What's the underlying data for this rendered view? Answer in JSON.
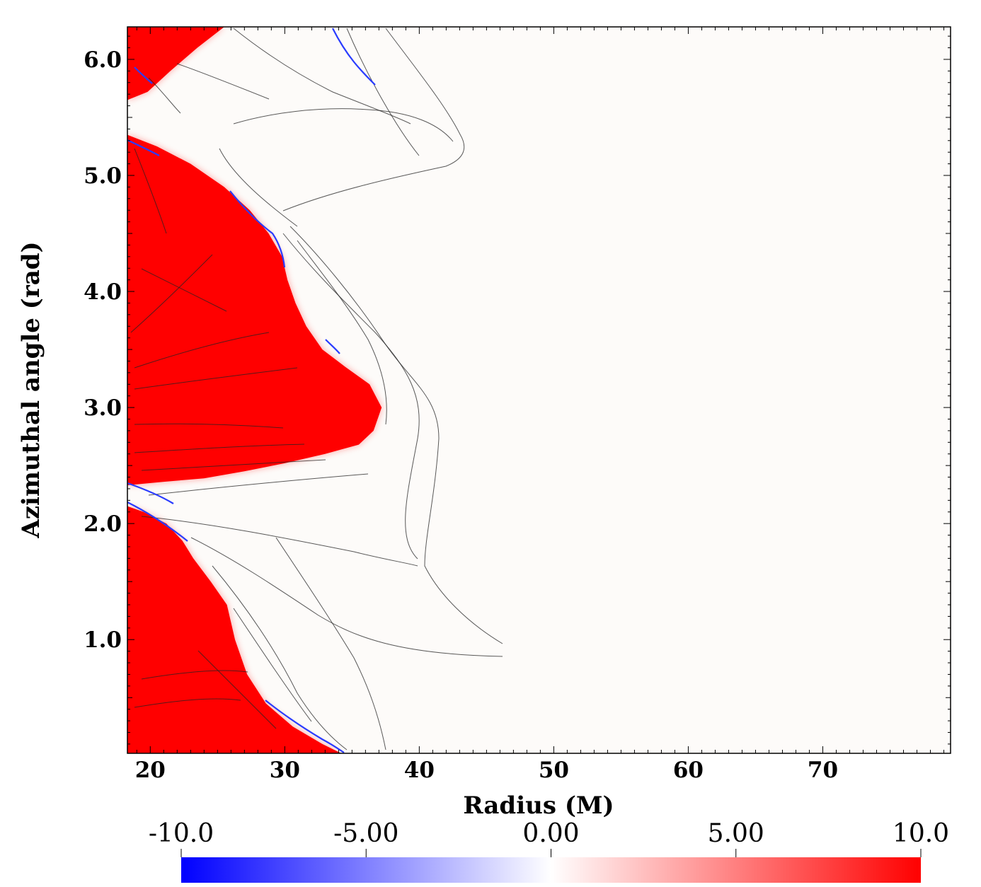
{
  "chart_data": {
    "type": "heatmap",
    "title": "",
    "xlabel": "Radius (M)",
    "ylabel": "Azimuthal angle (rad)",
    "xlim": [
      18.3,
      79.5
    ],
    "ylim": [
      0.02,
      6.28
    ],
    "x_ticks": [
      "20",
      "30",
      "40",
      "50",
      "60",
      "70"
    ],
    "x_tick_values": [
      20,
      30,
      40,
      50,
      60,
      70
    ],
    "y_ticks": [
      "1.0",
      "2.0",
      "3.0",
      "4.0",
      "5.0",
      "6.0"
    ],
    "y_tick_values": [
      1.0,
      2.0,
      3.0,
      4.0,
      5.0,
      6.0
    ],
    "colorbar": {
      "range": [
        -10,
        10
      ],
      "ticks": [
        "-10.0",
        "-5.00",
        "0.00",
        "5.00",
        "10.0"
      ],
      "tick_values": [
        -10,
        -5,
        0,
        5,
        10
      ],
      "colors": {
        "min": "#0000ff",
        "mid": "#ffffff",
        "max": "#ff0000"
      }
    },
    "regions": [
      {
        "value": 10,
        "boundary": [
          [
            18.3,
            2.33
          ],
          [
            21,
            2.36
          ],
          [
            24,
            2.39
          ],
          [
            27,
            2.45
          ],
          [
            30,
            2.52
          ],
          [
            33,
            2.6
          ],
          [
            35.5,
            2.68
          ],
          [
            36.6,
            2.8
          ],
          [
            37.2,
            3.0
          ],
          [
            36.3,
            3.2
          ],
          [
            34.5,
            3.35
          ],
          [
            32.8,
            3.5
          ],
          [
            31.6,
            3.7
          ],
          [
            30.8,
            3.9
          ],
          [
            30.2,
            4.1
          ],
          [
            29.8,
            4.3
          ],
          [
            28.8,
            4.5
          ],
          [
            27.4,
            4.7
          ],
          [
            25.5,
            4.9
          ],
          [
            23,
            5.1
          ],
          [
            20.5,
            5.25
          ],
          [
            18.3,
            5.35
          ]
        ]
      },
      {
        "value": 10,
        "boundary": [
          [
            18.3,
            0.02
          ],
          [
            34.2,
            0.02
          ],
          [
            32.8,
            0.1
          ],
          [
            30.6,
            0.25
          ],
          [
            28.6,
            0.45
          ],
          [
            27.2,
            0.7
          ],
          [
            26.3,
            1.0
          ],
          [
            25.7,
            1.3
          ],
          [
            24.5,
            1.5
          ],
          [
            23.2,
            1.7
          ],
          [
            22.4,
            1.85
          ],
          [
            21.2,
            2.0
          ],
          [
            19.5,
            2.1
          ],
          [
            18.3,
            2.15
          ]
        ]
      },
      {
        "value": 10,
        "boundary": [
          [
            18.3,
            6.28
          ],
          [
            25.5,
            6.28
          ],
          [
            23.5,
            6.1
          ],
          [
            21.5,
            5.9
          ],
          [
            19.8,
            5.72
          ],
          [
            18.3,
            5.65
          ]
        ]
      }
    ]
  }
}
